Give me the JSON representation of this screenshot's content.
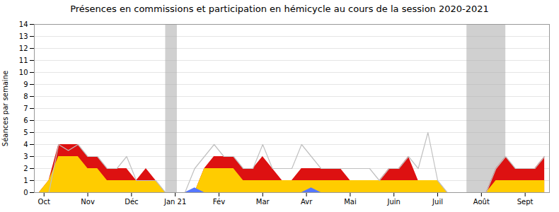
{
  "chart_data": {
    "type": "area",
    "title": "Présences en commissions et participation en hémicycle au cours de la session 2020-2021",
    "ylabel": "Séances par semaine",
    "x": [
      0,
      1,
      2,
      3,
      4,
      5,
      6,
      7,
      8,
      9,
      10,
      11,
      12,
      13,
      14,
      15,
      16,
      17,
      18,
      19,
      20,
      21,
      22,
      23,
      24,
      25,
      26,
      27,
      28,
      29,
      30,
      31,
      32,
      33,
      34,
      35,
      36,
      37,
      38,
      39,
      40,
      41,
      42,
      43,
      44,
      45,
      46,
      47,
      48,
      49,
      50,
      51,
      52
    ],
    "xlim": [
      -0.5,
      52.5
    ],
    "xticks": [
      {
        "value": 0.5,
        "label": "Oct"
      },
      {
        "value": 5.0,
        "label": "Nov"
      },
      {
        "value": 9.5,
        "label": "Déc"
      },
      {
        "value": 14.0,
        "label": "Jan 21"
      },
      {
        "value": 18.5,
        "label": "Fév"
      },
      {
        "value": 23.0,
        "label": "Mar"
      },
      {
        "value": 27.5,
        "label": "Avr"
      },
      {
        "value": 32.0,
        "label": "Mai"
      },
      {
        "value": 36.5,
        "label": "Juin"
      },
      {
        "value": 41.0,
        "label": "Juil"
      },
      {
        "value": 45.5,
        "label": "Août"
      },
      {
        "value": 50.0,
        "label": "Sept"
      }
    ],
    "ylim": [
      0,
      14
    ],
    "yticks": [
      0,
      1,
      2,
      3,
      4,
      5,
      6,
      7,
      8,
      9,
      10,
      11,
      12,
      13,
      14
    ],
    "grid": true,
    "stacked": false,
    "bands": [
      {
        "start": 13.0,
        "end": 14.2,
        "color": "#aaaaaa"
      },
      {
        "start": 44.0,
        "end": 48.0,
        "color": "#aaaaaa"
      }
    ],
    "series": [
      {
        "type": "area",
        "color": "#dd1111",
        "values": [
          0,
          1,
          4,
          4,
          4,
          3,
          3,
          2,
          2,
          2,
          1,
          2,
          1,
          0,
          0,
          0,
          0,
          2,
          3,
          3,
          3,
          2,
          2,
          3,
          2,
          1,
          1,
          2,
          2,
          2,
          2,
          2,
          1,
          1,
          1,
          1,
          2,
          2,
          3,
          1,
          1,
          1,
          0,
          0,
          0,
          0,
          0,
          2,
          3,
          2,
          2,
          2,
          3
        ]
      },
      {
        "type": "area",
        "color": "#ffcc00",
        "values": [
          0,
          1,
          3,
          3,
          3,
          2,
          2,
          1,
          1,
          1,
          1,
          1,
          1,
          0,
          0,
          0,
          0,
          2,
          2,
          2,
          2,
          1,
          1,
          1,
          1,
          1,
          1,
          1,
          1,
          1,
          1,
          1,
          1,
          1,
          1,
          1,
          1,
          1,
          1,
          1,
          1,
          1,
          0,
          0,
          0,
          0,
          0,
          1,
          1,
          1,
          1,
          1,
          1
        ]
      },
      {
        "type": "area",
        "color": "#5577ff",
        "values": [
          0,
          0,
          0,
          0,
          0,
          0,
          0,
          0,
          0,
          0,
          0,
          0,
          0,
          0,
          0,
          0,
          0.4,
          0,
          0,
          0,
          0,
          0,
          0,
          0,
          0,
          0,
          0,
          0,
          0.4,
          0,
          0,
          0,
          0,
          0,
          0,
          0,
          0,
          0,
          0,
          0,
          0,
          0,
          0,
          0,
          0,
          0,
          0,
          0,
          0,
          0,
          0,
          0,
          0
        ]
      },
      {
        "type": "line",
        "color": "#c0c0c0",
        "values": [
          0,
          0,
          4,
          3.5,
          4,
          3,
          3,
          2,
          2,
          3,
          1,
          1,
          1,
          0,
          0,
          0,
          2,
          3,
          4,
          3,
          3,
          2,
          2,
          4,
          2,
          2,
          2,
          4,
          3,
          2,
          2,
          2,
          2,
          2,
          2,
          1,
          2,
          2,
          3,
          2,
          5,
          1,
          0,
          0,
          0,
          0,
          0,
          2,
          3,
          2,
          2,
          2,
          3
        ]
      }
    ]
  }
}
